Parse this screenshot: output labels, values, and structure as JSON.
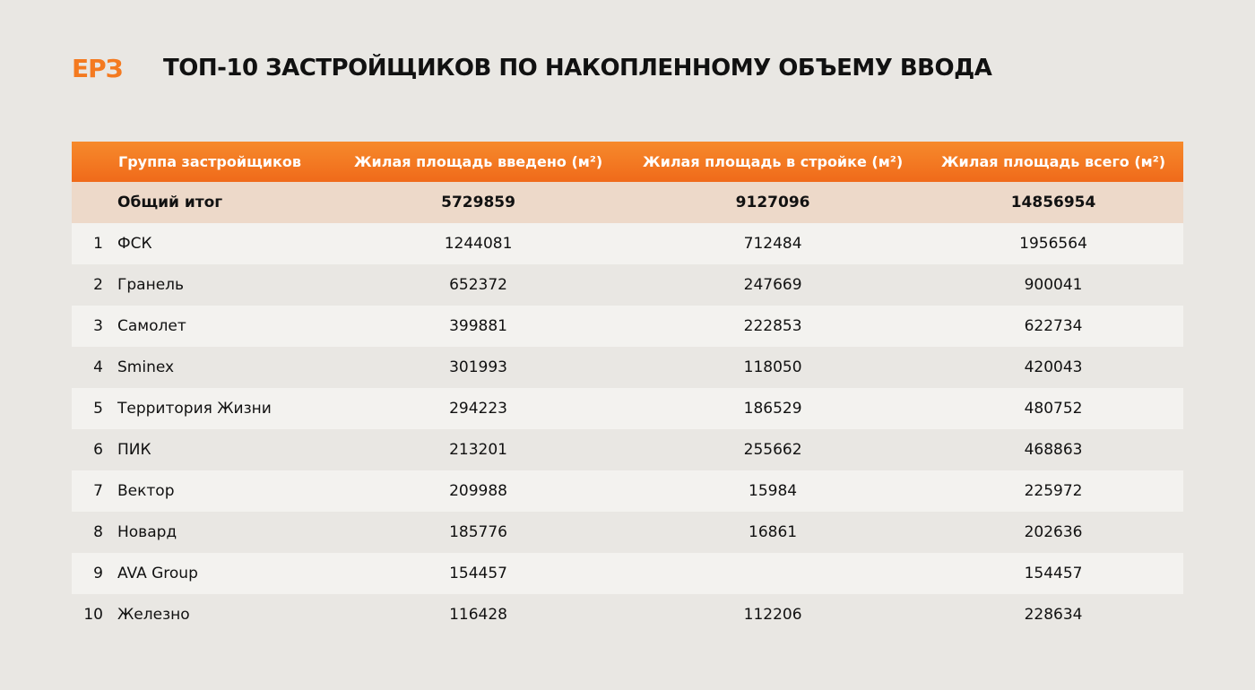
{
  "header": {
    "logo": "ЕРЗ",
    "title": "ТОП-10 ЗАСТРОЙЩИКОВ ПО НАКОПЛЕННОМУ ОБЪЕМУ ВВОДА"
  },
  "table": {
    "columns": [
      "Группа застройщиков",
      "Жилая площадь введено (м²)",
      "Жилая площадь в стройке (м²)",
      "Жилая площадь всего (м²)"
    ],
    "total": [
      "Общий итог",
      5729859,
      9127096,
      14856954
    ],
    "rows": [
      [
        1,
        "ФСК",
        1244081,
        712484,
        1956564
      ],
      [
        2,
        "Гранель",
        652372,
        247669,
        900041
      ],
      [
        3,
        "Самолет",
        399881,
        222853,
        622734
      ],
      [
        4,
        "Sminex",
        301993,
        118050,
        420043
      ],
      [
        5,
        "Территория Жизни",
        294223,
        186529,
        480752
      ],
      [
        6,
        "ПИК",
        213201,
        255662,
        468863
      ],
      [
        7,
        "Вектор",
        209988,
        15984,
        225972
      ],
      [
        8,
        "Новард",
        185776,
        16861,
        202636
      ],
      [
        9,
        "AVA Group",
        154457,
        null,
        154457
      ],
      [
        10,
        "Железно",
        116428,
        112206,
        228634
      ]
    ]
  }
}
